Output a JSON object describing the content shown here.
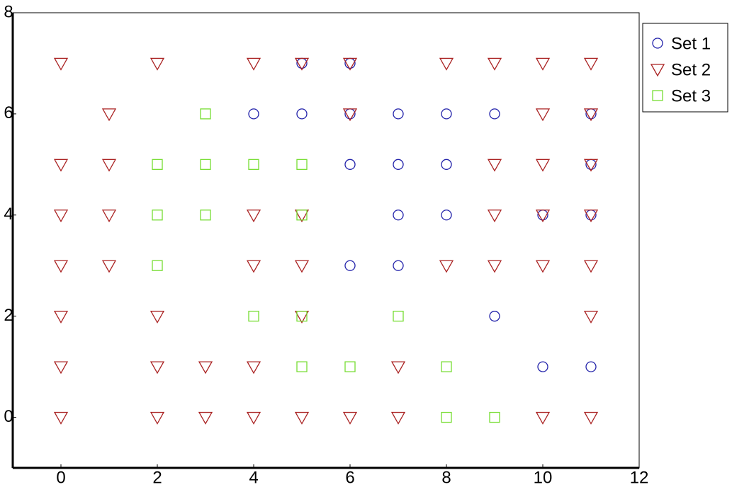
{
  "chart_data": {
    "type": "scatter",
    "xlim": [
      -1,
      12
    ],
    "ylim": [
      -1,
      8
    ],
    "xticks": [
      0,
      2,
      4,
      6,
      8,
      10,
      12
    ],
    "yticks": [
      0,
      2,
      4,
      6,
      8
    ],
    "legend": "outside-right",
    "series": [
      {
        "name": "Set 1",
        "color": "#2222aa",
        "marker": "circle",
        "x": [
          5,
          6,
          4,
          5,
          6,
          7,
          8,
          9,
          11,
          6,
          7,
          8,
          11,
          7,
          8,
          10,
          11,
          6,
          7,
          9,
          10,
          11
        ],
        "y": [
          7,
          7,
          6,
          6,
          6,
          6,
          6,
          6,
          6,
          5,
          5,
          5,
          5,
          4,
          4,
          4,
          4,
          3,
          3,
          2,
          1,
          1
        ]
      },
      {
        "name": "Set 2",
        "color": "#aa2222",
        "marker": "triangle-down",
        "x": [
          0,
          2,
          4,
          5,
          6,
          8,
          9,
          10,
          11,
          1,
          6,
          10,
          11,
          0,
          1,
          9,
          10,
          11,
          0,
          1,
          4,
          5,
          9,
          10,
          11,
          0,
          1,
          4,
          5,
          8,
          9,
          10,
          11,
          0,
          2,
          5,
          11,
          0,
          2,
          3,
          4,
          7,
          0,
          2,
          3,
          4,
          5,
          6,
          7,
          10,
          11
        ],
        "y": [
          7,
          7,
          7,
          7,
          7,
          7,
          7,
          7,
          7,
          6,
          6,
          6,
          6,
          5,
          5,
          5,
          5,
          5,
          4,
          4,
          4,
          4,
          4,
          4,
          4,
          3,
          3,
          3,
          3,
          3,
          3,
          3,
          3,
          2,
          2,
          2,
          2,
          1,
          1,
          1,
          1,
          1,
          0,
          0,
          0,
          0,
          0,
          0,
          0,
          0,
          0
        ]
      },
      {
        "name": "Set 3",
        "color": "#77dd33",
        "marker": "square",
        "x": [
          3,
          2,
          3,
          4,
          5,
          2,
          3,
          5,
          2,
          4,
          5,
          7,
          5,
          6,
          8,
          8,
          9
        ],
        "y": [
          6,
          5,
          5,
          5,
          5,
          4,
          4,
          4,
          3,
          2,
          2,
          2,
          1,
          1,
          1,
          0,
          0
        ]
      }
    ]
  }
}
